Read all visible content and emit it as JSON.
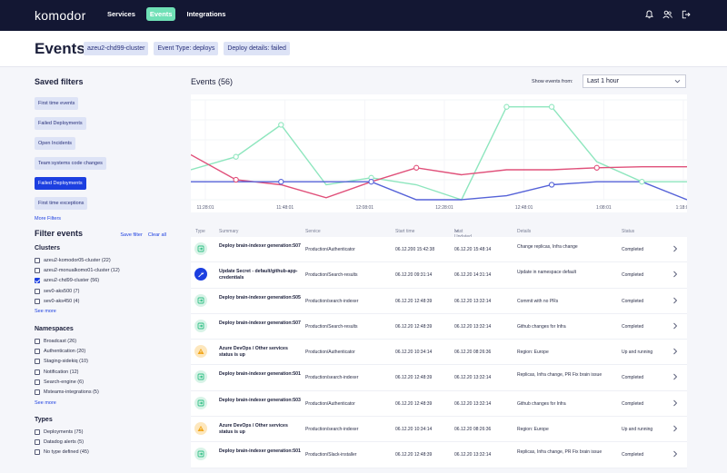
{
  "nav": {
    "logo": "komodor",
    "links": [
      {
        "label": "Services",
        "active": false
      },
      {
        "label": "Events",
        "active": true
      },
      {
        "label": "Integrations",
        "active": false
      }
    ],
    "icons": [
      "bell-icon",
      "users-icon",
      "logout-icon"
    ]
  },
  "header": {
    "title": "Events",
    "chips": [
      "azeu2-chd99-cluster",
      "Event Type: deploys",
      "Deploy details: failed"
    ]
  },
  "sidebar": {
    "saved_title": "Saved filters",
    "saved": [
      {
        "label": "First time events",
        "active": false
      },
      {
        "label": "Failed Deployments",
        "active": false
      },
      {
        "label": "Open Incidents",
        "active": false
      },
      {
        "label": "Team:systems code changes",
        "active": false
      },
      {
        "label": "Failed Deployments",
        "active": true
      },
      {
        "label": "First time exceptions",
        "active": false
      }
    ],
    "more_filters": "More Filters",
    "filter_title": "Filter events",
    "save_filter": "Save filter",
    "clear_all": "Clear all",
    "see_more": "See more",
    "groups": [
      {
        "title": "Clusters",
        "items": [
          {
            "label": "azeu2-komodor05-cluster (22)",
            "checked": false
          },
          {
            "label": "azeu2-monualkomo01-cluster (12)",
            "checked": false
          },
          {
            "label": "azeu2-chd99-cluster (56)",
            "checked": true
          },
          {
            "label": "sev0-aks500 (7)",
            "checked": false
          },
          {
            "label": "sev0-aks450 (4)",
            "checked": false
          }
        ]
      },
      {
        "title": "Namespaces",
        "items": [
          {
            "label": "Broadcast (26)",
            "checked": false
          },
          {
            "label": "Authentication (20)",
            "checked": false
          },
          {
            "label": "Staging-sidekiq (10)",
            "checked": false
          },
          {
            "label": "Notification (12)",
            "checked": false
          },
          {
            "label": "Search-engine (6)",
            "checked": false
          },
          {
            "label": "Msteams-integrations (5)",
            "checked": false
          }
        ]
      },
      {
        "title": "Types",
        "items": [
          {
            "label": "Deployments (75)",
            "checked": false
          },
          {
            "label": "Datadog alerts (5)",
            "checked": false
          },
          {
            "label": "No type defined (45)",
            "checked": false
          }
        ]
      }
    ]
  },
  "main": {
    "title": "Events (56)",
    "show_from_label": "Show events from:",
    "show_from_value": "Last 1 hour"
  },
  "chart_data": {
    "type": "line",
    "x": [
      "11:28:01",
      "11:48:01",
      "12:08:01",
      "12:28:01",
      "12:48:01",
      "1:08:01",
      "1:18:01"
    ],
    "ylim": [
      0,
      10
    ],
    "grid": true,
    "series": [
      {
        "color": "#8ee6be",
        "points": [
          [
            0,
            3.0
          ],
          [
            1,
            4.3
          ],
          [
            2,
            7.5
          ],
          [
            3,
            1.5
          ],
          [
            4,
            2.2
          ],
          [
            5,
            1.5
          ],
          [
            6,
            0
          ],
          [
            7,
            9.3
          ],
          [
            8,
            9.3
          ],
          [
            9,
            3.8
          ],
          [
            10,
            1.8
          ],
          [
            11,
            1.8
          ]
        ]
      },
      {
        "color": "#e0507a",
        "points": [
          [
            0,
            4.5
          ],
          [
            1,
            2.0
          ],
          [
            2,
            1.5
          ],
          [
            3,
            0.2
          ],
          [
            4,
            1.8
          ],
          [
            5,
            3.2
          ],
          [
            6,
            2.5
          ],
          [
            7,
            3.0
          ],
          [
            8,
            3.0
          ],
          [
            9,
            3.2
          ],
          [
            10,
            3.3
          ],
          [
            11,
            3.3
          ]
        ]
      },
      {
        "color": "#5562d8",
        "points": [
          [
            0,
            1.8
          ],
          [
            1,
            1.8
          ],
          [
            2,
            1.8
          ],
          [
            3,
            1.8
          ],
          [
            4,
            1.8
          ],
          [
            5,
            0
          ],
          [
            6,
            0
          ],
          [
            7,
            0.4
          ],
          [
            8,
            1.5
          ],
          [
            9,
            1.8
          ],
          [
            10,
            1.8
          ],
          [
            11,
            0
          ]
        ]
      }
    ],
    "markers": [
      {
        "series": 0,
        "points": [
          1,
          2,
          4,
          7,
          8,
          10
        ]
      },
      {
        "series": 1,
        "points": [
          1,
          5,
          9
        ]
      },
      {
        "series": 2,
        "points": [
          2,
          4,
          8
        ]
      }
    ]
  },
  "table": {
    "headers": {
      "type": "Type",
      "summary": "Summary",
      "service": "Service",
      "start": "Start time",
      "updated": "Last Updated",
      "details": "Details",
      "status": "Status"
    },
    "rows": [
      {
        "icon": "deploy-icon",
        "kind": "deploy",
        "summary": "Deploy brain-indexer generation:507",
        "service": "Production/Authenticator",
        "start": "06.12.200 15:42:38",
        "updated": "06.12.20 15:48:14",
        "details": "Change replicas, Infra change",
        "status": "Completed"
      },
      {
        "icon": "wrench-icon",
        "kind": "secret",
        "summary": "Update Secret - default/github-app-credentials",
        "service": "Production/Search-results",
        "start": "06.12.20 09:31:14",
        "updated": "06.12.20 14:31:14",
        "details": "Update in namespace default",
        "status": "Completed"
      },
      {
        "icon": "deploy-icon",
        "kind": "deploy",
        "summary": "Deploy brain-indexer generation:505",
        "service": "Production/search-indexer",
        "start": "06.12.20 12:48:39",
        "updated": "06.12.20 13:32:14",
        "details": "Commit with no PRs",
        "status": "Completed"
      },
      {
        "icon": "deploy-icon",
        "kind": "deploy",
        "summary": "Deploy brain-indexer generation:507",
        "service": "Production/Search-results",
        "start": "06.12.20 12:48:39",
        "updated": "06.12.20 13:32:14",
        "details": "Github changes for Infra",
        "status": "Completed"
      },
      {
        "icon": "warning-icon",
        "kind": "warn",
        "summary": "Azure DevOps / Other services status is up",
        "service": "Production/Authenticator",
        "start": "06.12.20 10:34:14",
        "updated": "06.12.20 08:26:36",
        "details": "Region: Europe",
        "status": "Up and running"
      },
      {
        "icon": "deploy-icon",
        "kind": "deploy",
        "summary": "Deploy brain-indexer generation:501",
        "service": "Production/search-indexer",
        "start": "06.12.20 12:48:39",
        "updated": "06.12.20 13:32:14",
        "details": "Replicas, Infra change, PR Fix brain issue",
        "status": "Completed"
      },
      {
        "icon": "deploy-icon",
        "kind": "deploy",
        "summary": "Deploy brain-indexer generation:503",
        "service": "Production/Authenticator",
        "start": "06.12.20 12:48:39",
        "updated": "06.12.20 13:32:14",
        "details": "Github changes for Infra",
        "status": "Completed"
      },
      {
        "icon": "warning-icon",
        "kind": "warn",
        "summary": "Azure DevOps / Other services status is up",
        "service": "Production/search-indexer",
        "start": "06.12.20 10:34:14",
        "updated": "06.12.20 08:26:36",
        "details": "Region: Europe",
        "status": "Up and running"
      },
      {
        "icon": "deploy-icon",
        "kind": "deploy",
        "summary": "Deploy brain-indexer generation:501",
        "service": "Production/Slack-installer",
        "start": "06.12.20 12:48:39",
        "updated": "06.12.20 13:32:14",
        "details": "Replicas, Infra change, PR Fix brain issue",
        "status": "Completed"
      }
    ]
  }
}
